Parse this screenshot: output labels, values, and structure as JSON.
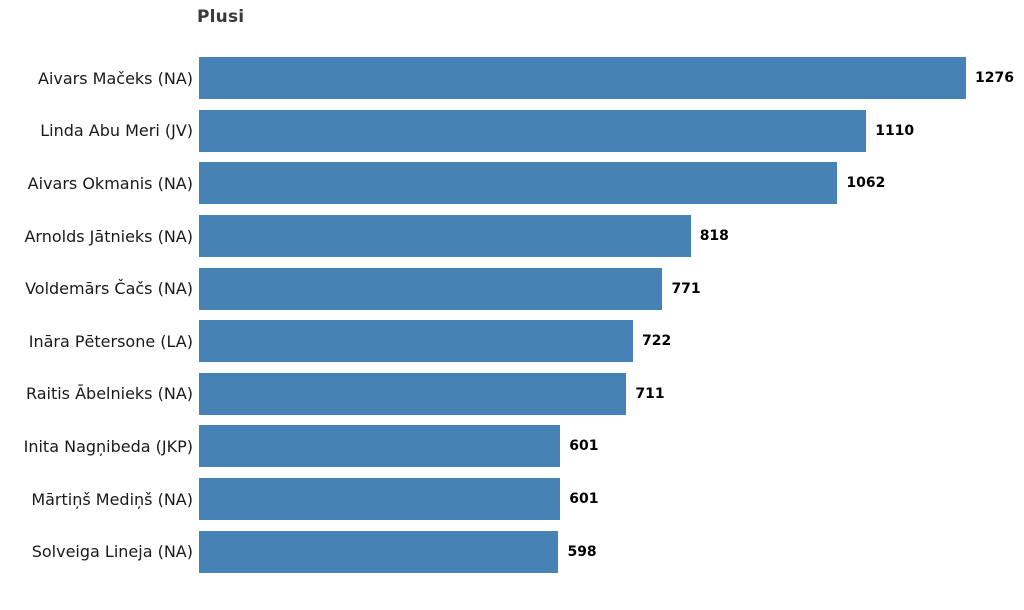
{
  "chart_data": {
    "type": "bar",
    "orientation": "horizontal",
    "title": "Plusi",
    "categories": [
      "Aivars Mačeks (NA)",
      "Linda Abu Meri (JV)",
      "Aivars Okmanis (NA)",
      "Arnolds Jātnieks (NA)",
      "Voldemārs Čačs (NA)",
      "Ināra Pētersone (LA)",
      "Raitis Ābelnieks (NA)",
      "Inita Nagņibeda (JKP)",
      "Mārtiņš Mediņš (NA)",
      "Solveiga Lineja (NA)"
    ],
    "values": [
      1276,
      1110,
      1062,
      818,
      771,
      722,
      711,
      601,
      601,
      598
    ],
    "value_labels": [
      "1276",
      "1110",
      "1062",
      "818",
      "771",
      "722",
      "711",
      "601",
      "601",
      "598"
    ],
    "xlim": [
      0,
      1276
    ],
    "grid": false,
    "legend": null,
    "xlabel": "",
    "ylabel": "",
    "bar_color": "#4682b4",
    "value_label_color": "#000000",
    "category_label_color": "#1a1a1a",
    "title_color": "#3a3a3a",
    "background_color": "#ffffff"
  }
}
